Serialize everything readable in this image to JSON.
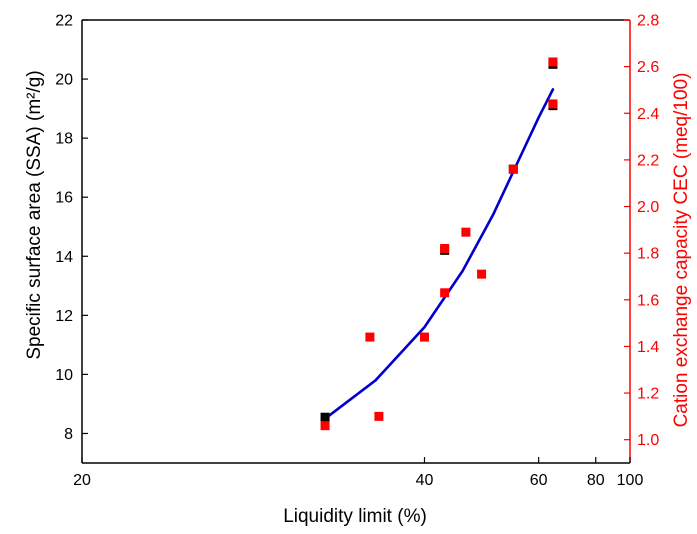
{
  "chart_data": {
    "type": "scatter",
    "title": "",
    "xlabel": "Liquidity limit (%)",
    "ylabel_left": "Specific surface area (SSA) (m²/g)",
    "ylabel_right": "Cation exchange capacity CEC (meq/100)",
    "xscale": "reciprocal",
    "x_ticks": [
      20,
      40,
      60,
      80,
      100
    ],
    "ylim_left": [
      7,
      22
    ],
    "y_ticks_left": [
      8,
      10,
      12,
      14,
      16,
      18,
      20,
      22
    ],
    "ylim_right": [
      0.9,
      2.8
    ],
    "y_ticks_right": [
      1.0,
      1.2,
      1.4,
      1.6,
      1.8,
      2.0,
      2.2,
      2.4,
      2.6,
      2.8
    ],
    "grid": false,
    "colors": {
      "ssa_points": "#000000",
      "cec_points": "#ff0000",
      "fit_line": "#0000cc",
      "right_axis": "#ff0000",
      "left_axis": "#000000"
    },
    "series": [
      {
        "axis": "left",
        "kind": "points",
        "x": [
          31,
          42.5,
          54,
          64,
          64
        ],
        "y": [
          8.55,
          14.2,
          16.95,
          19.1,
          20.5
        ]
      },
      {
        "axis": "right",
        "kind": "points",
        "x": [
          31,
          34.5,
          35.3,
          40,
          42.5,
          42.5,
          45.5,
          48,
          54,
          64,
          64
        ],
        "y": [
          1.06,
          1.44,
          1.1,
          1.44,
          1.63,
          1.82,
          1.89,
          1.71,
          2.16,
          2.44,
          2.62
        ]
      },
      {
        "axis": "left",
        "kind": "fit-line",
        "x": [
          31,
          35,
          40,
          45,
          50,
          55,
          60,
          64
        ],
        "y": [
          8.5,
          9.8,
          11.6,
          13.5,
          15.4,
          17.2,
          18.7,
          19.65
        ]
      }
    ]
  }
}
